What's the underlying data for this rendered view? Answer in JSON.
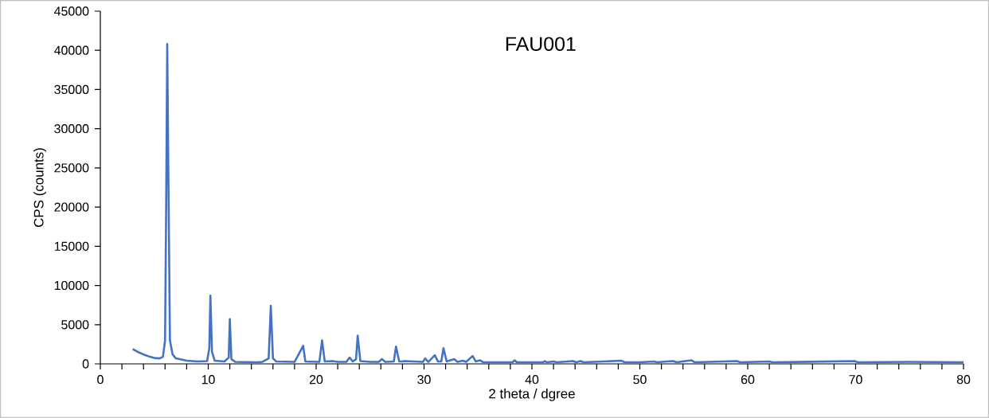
{
  "chart_data": {
    "type": "line",
    "title": "FAU001",
    "xlabel": "2 theta / dgree",
    "ylabel": "CPS (counts)",
    "color": "#4472c4",
    "xlim": [
      0,
      80
    ],
    "ylim": [
      0,
      45000
    ],
    "xticks": [
      0,
      {
        "value": 2,
        "label": null
      },
      {
        "value": 4,
        "label": null
      },
      {
        "value": 6,
        "label": null
      },
      {
        "value": 8,
        "label": null
      },
      10,
      {
        "value": 12,
        "label": null
      },
      {
        "value": 14,
        "label": null
      },
      {
        "value": 16,
        "label": null
      },
      {
        "value": 18,
        "label": null
      },
      20,
      {
        "value": 22,
        "label": null
      },
      {
        "value": 24,
        "label": null
      },
      {
        "value": 26,
        "label": null
      },
      {
        "value": 28,
        "label": null
      },
      30,
      {
        "value": 32,
        "label": null
      },
      {
        "value": 34,
        "label": null
      },
      {
        "value": 36,
        "label": null
      },
      {
        "value": 38,
        "label": null
      },
      40,
      {
        "value": 42,
        "label": null
      },
      {
        "value": 44,
        "label": null
      },
      {
        "value": 46,
        "label": null
      },
      {
        "value": 48,
        "label": null
      },
      50,
      {
        "value": 52,
        "label": null
      },
      {
        "value": 54,
        "label": null
      },
      {
        "value": 56,
        "label": null
      },
      {
        "value": 58,
        "label": null
      },
      60,
      {
        "value": 62,
        "label": null
      },
      {
        "value": 64,
        "label": null
      },
      {
        "value": 66,
        "label": null
      },
      {
        "value": 68,
        "label": null
      },
      70,
      {
        "value": 72,
        "label": null
      },
      {
        "value": 74,
        "label": null
      },
      {
        "value": 76,
        "label": null
      },
      {
        "value": 78,
        "label": null
      },
      80
    ],
    "yticks": [
      0,
      5000,
      10000,
      15000,
      20000,
      25000,
      30000,
      35000,
      40000,
      45000
    ],
    "x": [
      3.0,
      3.5,
      4.0,
      4.5,
      5.0,
      5.5,
      5.8,
      6.0,
      6.1,
      6.2,
      6.3,
      6.45,
      6.7,
      7.0,
      8.0,
      9.0,
      9.9,
      10.1,
      10.2,
      10.35,
      10.6,
      11.5,
      11.9,
      12.0,
      12.15,
      12.5,
      14.5,
      15.0,
      15.6,
      15.8,
      16.0,
      16.3,
      18.0,
      18.8,
      19.0,
      20.3,
      20.55,
      20.8,
      21.5,
      22.0,
      22.8,
      23.1,
      23.4,
      23.7,
      23.85,
      24.1,
      25.0,
      25.8,
      26.1,
      26.4,
      27.2,
      27.4,
      27.7,
      28.0,
      28.2,
      29.9,
      30.1,
      30.4,
      31.0,
      31.3,
      31.6,
      31.8,
      32.1,
      32.8,
      33.1,
      33.6,
      33.9,
      34.5,
      34.8,
      35.2,
      35.5,
      38.2,
      38.4,
      38.6,
      41.0,
      41.2,
      41.4,
      42.0,
      42.3,
      43.8,
      44.1,
      44.5,
      44.8,
      48.3,
      48.6,
      50.0,
      51.3,
      51.6,
      52.5,
      53.1,
      53.4,
      54.8,
      55.1,
      59.0,
      59.3,
      62.0,
      62.3,
      69.9,
      70.2,
      75.0,
      80.0
    ],
    "values": [
      1900,
      1500,
      1200,
      950,
      750,
      700,
      900,
      3000,
      20000,
      40800,
      25000,
      3000,
      1200,
      700,
      400,
      300,
      350,
      2000,
      8700,
      1500,
      400,
      300,
      800,
      5700,
      600,
      250,
      200,
      250,
      700,
      7400,
      700,
      300,
      250,
      2300,
      300,
      250,
      3000,
      300,
      350,
      250,
      250,
      800,
      300,
      600,
      3600,
      350,
      250,
      250,
      600,
      250,
      300,
      2200,
      300,
      300,
      350,
      250,
      700,
      250,
      1100,
      300,
      300,
      2000,
      300,
      600,
      250,
      400,
      250,
      1000,
      300,
      450,
      200,
      200,
      450,
      200,
      200,
      350,
      200,
      300,
      200,
      350,
      200,
      350,
      200,
      400,
      200,
      200,
      300,
      200,
      300,
      350,
      200,
      450,
      200,
      350,
      200,
      300,
      200,
      350,
      200,
      250,
      200
    ]
  }
}
